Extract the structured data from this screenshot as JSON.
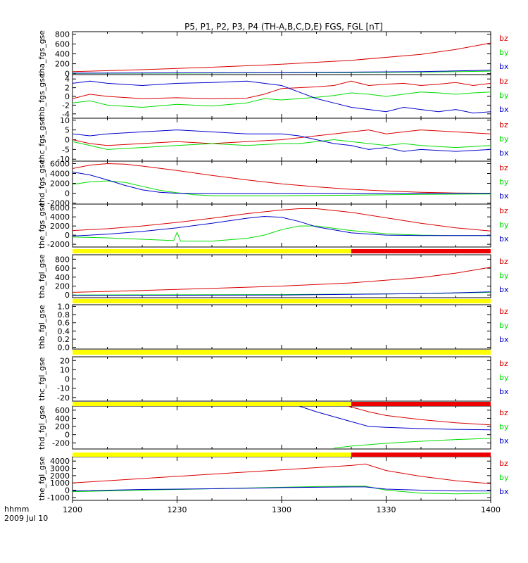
{
  "title": "P5, P1, P2, P3, P4 (TH-A,B,C,D,E) FGS, FGL [nT]",
  "xaxis": {
    "label_line1": "hhmm",
    "label_line2": "2009 Jul 10",
    "range_minutes": [
      0,
      120
    ],
    "ticks": [
      {
        "minute": 0,
        "label": "1200"
      },
      {
        "minute": 30,
        "label": "1230"
      },
      {
        "minute": 60,
        "label": "1300"
      },
      {
        "minute": 90,
        "label": "1330"
      },
      {
        "minute": 120,
        "label": "1400"
      }
    ]
  },
  "colors": {
    "bz": "#d90000",
    "by": "#00dd00",
    "bx": "#0000cc",
    "flag_yellow": "#ffff00",
    "flag_red": "#ee0000",
    "axis": "#000000"
  },
  "legend_labels": {
    "bz": "bz",
    "by": "by",
    "bx": "bx"
  },
  "chart_data": [
    {
      "type": "line",
      "ylabel": "tha_fgs_gse",
      "ylim": [
        -20,
        850
      ],
      "yticks": [
        0,
        200,
        400,
        600,
        800
      ],
      "series": [
        {
          "name": "bz",
          "x": [
            0,
            20,
            40,
            60,
            80,
            100,
            110,
            120
          ],
          "y": [
            40,
            80,
            130,
            190,
            270,
            390,
            490,
            620
          ]
        },
        {
          "name": "by",
          "x": [
            0,
            60,
            100,
            120
          ],
          "y": [
            5,
            15,
            30,
            50
          ]
        },
        {
          "name": "bx",
          "x": [
            0,
            60,
            100,
            120
          ],
          "y": [
            10,
            20,
            40,
            70
          ]
        }
      ]
    },
    {
      "type": "line",
      "ylabel": "thb_fgs_gse",
      "ylim": [
        -5,
        5
      ],
      "yticks": [
        -4,
        -2,
        0,
        2,
        4
      ],
      "series": [
        {
          "name": "bz",
          "x": [
            0,
            5,
            10,
            20,
            30,
            40,
            50,
            55,
            60,
            65,
            70,
            75,
            80,
            85,
            90,
            95,
            100,
            105,
            110,
            115,
            120
          ],
          "y": [
            -0.5,
            0.5,
            0,
            -0.5,
            -0.3,
            -0.5,
            -0.4,
            0.5,
            1.8,
            2.0,
            2.2,
            2.5,
            3.5,
            2.5,
            2.8,
            3.0,
            2.5,
            2.8,
            3.2,
            2.5,
            3.0
          ]
        },
        {
          "name": "by",
          "x": [
            0,
            5,
            10,
            20,
            30,
            40,
            50,
            55,
            60,
            65,
            70,
            75,
            80,
            85,
            90,
            95,
            100,
            105,
            110,
            115,
            120
          ],
          "y": [
            -1.5,
            -1.0,
            -2.0,
            -2.5,
            -1.8,
            -2.2,
            -1.5,
            -0.5,
            -0.8,
            -0.5,
            -0.2,
            0.2,
            0.8,
            0.5,
            0.0,
            0.5,
            1.0,
            0.8,
            0.5,
            0.8,
            1.0
          ]
        },
        {
          "name": "bx",
          "x": [
            0,
            5,
            10,
            20,
            30,
            40,
            50,
            55,
            60,
            65,
            70,
            75,
            80,
            85,
            90,
            95,
            100,
            105,
            110,
            115,
            120
          ],
          "y": [
            3.0,
            3.5,
            3.0,
            2.5,
            3.0,
            3.2,
            3.5,
            3.0,
            2.5,
            1.0,
            -0.5,
            -1.5,
            -2.5,
            -3.0,
            -3.5,
            -2.5,
            -3.0,
            -3.5,
            -3.0,
            -3.8,
            -3.5
          ]
        }
      ]
    },
    {
      "type": "line",
      "ylabel": "thc_fgs_gse",
      "ylim": [
        -11,
        11
      ],
      "yticks": [
        -10,
        -5,
        0,
        5,
        10
      ],
      "series": [
        {
          "name": "bz",
          "x": [
            0,
            5,
            10,
            20,
            30,
            40,
            50,
            60,
            65,
            70,
            75,
            80,
            85,
            90,
            95,
            100,
            110,
            120
          ],
          "y": [
            0,
            -2,
            -3,
            -2,
            -1,
            -2,
            -1,
            0,
            1,
            2,
            3,
            4,
            5,
            3,
            4,
            5,
            4,
            3
          ]
        },
        {
          "name": "by",
          "x": [
            0,
            5,
            10,
            20,
            30,
            40,
            50,
            60,
            65,
            70,
            75,
            80,
            85,
            90,
            95,
            100,
            110,
            120
          ],
          "y": [
            -1,
            -3,
            -5,
            -4,
            -3,
            -2,
            -3,
            -2,
            -2,
            -1,
            0,
            -1,
            -2,
            -3,
            -2,
            -3,
            -4,
            -3
          ]
        },
        {
          "name": "bx",
          "x": [
            0,
            5,
            10,
            20,
            30,
            40,
            50,
            60,
            65,
            70,
            75,
            80,
            85,
            90,
            95,
            100,
            110,
            120
          ],
          "y": [
            3,
            2,
            3,
            4,
            5,
            4,
            3,
            3,
            2,
            0,
            -2,
            -3,
            -5,
            -4,
            -6,
            -5,
            -6,
            -5
          ]
        }
      ]
    },
    {
      "type": "line",
      "ylabel": "thd_fgs_gse",
      "ylim": [
        -2200,
        6500
      ],
      "yticks": [
        -2000,
        0,
        2000,
        4000,
        6000
      ],
      "series": [
        {
          "name": "bz",
          "x": [
            0,
            5,
            10,
            15,
            20,
            30,
            40,
            50,
            60,
            70,
            80,
            90,
            100,
            110,
            120
          ],
          "y": [
            5000,
            5700,
            6000,
            5900,
            5500,
            4600,
            3600,
            2700,
            1900,
            1300,
            800,
            450,
            200,
            50,
            0
          ]
        },
        {
          "name": "by",
          "x": [
            0,
            5,
            10,
            15,
            20,
            25,
            30,
            35,
            40,
            60,
            80,
            100,
            120
          ],
          "y": [
            1800,
            2300,
            2500,
            2200,
            1400,
            600,
            100,
            -300,
            -500,
            -500,
            -400,
            -250,
            -150
          ]
        },
        {
          "name": "bx",
          "x": [
            0,
            5,
            10,
            15,
            20,
            25,
            30,
            40,
            60,
            80,
            100,
            120
          ],
          "y": [
            4300,
            3700,
            2700,
            1600,
            700,
            200,
            0,
            -50,
            -30,
            0,
            0,
            0
          ]
        }
      ]
    },
    {
      "type": "line",
      "ylabel": "the_fgs_gse",
      "ylim": [
        -2600,
        6800
      ],
      "yticks": [
        -2000,
        0,
        2000,
        4000,
        6000
      ],
      "series": [
        {
          "name": "bz",
          "x": [
            0,
            10,
            20,
            30,
            40,
            50,
            60,
            65,
            70,
            80,
            90,
            100,
            110,
            120
          ],
          "y": [
            1000,
            1400,
            2000,
            2800,
            3700,
            4700,
            5500,
            5800,
            5800,
            5000,
            3800,
            2600,
            1600,
            900
          ]
        },
        {
          "name": "by",
          "x": [
            0,
            10,
            20,
            29,
            30,
            31,
            40,
            50,
            55,
            60,
            65,
            70,
            80,
            90,
            100,
            110,
            120
          ],
          "y": [
            -400,
            -600,
            -900,
            -1200,
            600,
            -1300,
            -1300,
            -700,
            0,
            1200,
            2000,
            2000,
            1000,
            300,
            0,
            -100,
            -100
          ]
        },
        {
          "name": "bx",
          "x": [
            0,
            10,
            20,
            30,
            40,
            50,
            55,
            60,
            65,
            70,
            80,
            90,
            100,
            110,
            120
          ],
          "y": [
            -200,
            200,
            800,
            1600,
            2600,
            3700,
            4100,
            3900,
            3000,
            1800,
            500,
            0,
            -100,
            -100,
            -100
          ]
        }
      ]
    },
    {
      "type": "line",
      "ylabel": "tha_fgl_gse",
      "ylim": [
        -60,
        900
      ],
      "yticks": [
        0,
        200,
        400,
        600,
        800
      ],
      "series": [
        {
          "name": "bz",
          "x": [
            0,
            20,
            40,
            60,
            80,
            100,
            110,
            120
          ],
          "y": [
            60,
            100,
            150,
            200,
            270,
            390,
            490,
            620
          ]
        },
        {
          "name": "by",
          "x": [
            0,
            60,
            100,
            120
          ],
          "y": [
            0,
            10,
            30,
            60
          ]
        },
        {
          "name": "bx",
          "x": [
            0,
            60,
            100,
            120
          ],
          "y": [
            -10,
            0,
            30,
            70
          ]
        }
      ]
    },
    {
      "type": "line",
      "ylabel": "thb_fgl_gse",
      "ylim": [
        -0.04,
        1.04
      ],
      "yticks": [
        0.0,
        0.2,
        0.4,
        0.6,
        0.8,
        1.0
      ],
      "series": []
    },
    {
      "type": "line",
      "ylabel": "thc_fgl_gse",
      "ylim": [
        -24,
        24
      ],
      "yticks": [
        -20,
        -10,
        0,
        10,
        20
      ],
      "series": []
    },
    {
      "type": "line",
      "ylabel": "thd_fgl_gse",
      "ylim": [
        -350,
        700
      ],
      "yticks": [
        -200,
        0,
        200,
        400,
        600
      ],
      "series": [
        {
          "name": "bz",
          "x": [
            79,
            85,
            90,
            100,
            110,
            120
          ],
          "y": [
            700,
            560,
            470,
            370,
            290,
            240
          ]
        },
        {
          "name": "by",
          "x": [
            75,
            80,
            90,
            100,
            110,
            120
          ],
          "y": [
            -330,
            -280,
            -210,
            -160,
            -120,
            -90
          ]
        },
        {
          "name": "bx",
          "x": [
            65,
            70,
            80,
            85,
            90,
            100,
            110,
            120
          ],
          "y": [
            700,
            560,
            320,
            200,
            180,
            150,
            130,
            120
          ]
        }
      ]
    },
    {
      "type": "line",
      "ylabel": "the_fgl_gse",
      "ylim": [
        -1400,
        4600
      ],
      "yticks": [
        -1000,
        0,
        1000,
        2000,
        3000,
        4000
      ],
      "series": [
        {
          "name": "bz",
          "x": [
            0,
            20,
            40,
            60,
            70,
            80,
            84,
            90,
            100,
            110,
            120
          ],
          "y": [
            1000,
            1600,
            2200,
            2800,
            3100,
            3400,
            3600,
            2700,
            1900,
            1300,
            900
          ]
        },
        {
          "name": "by",
          "x": [
            0,
            20,
            40,
            60,
            70,
            80,
            84,
            90,
            100,
            110,
            120
          ],
          "y": [
            -200,
            0,
            200,
            400,
            500,
            550,
            550,
            0,
            -400,
            -500,
            -400
          ]
        },
        {
          "name": "bx",
          "x": [
            0,
            20,
            40,
            60,
            70,
            80,
            84,
            90,
            100,
            110,
            120
          ],
          "y": [
            -100,
            100,
            200,
            350,
            400,
            450,
            450,
            150,
            0,
            -100,
            -100
          ]
        }
      ]
    }
  ],
  "flag_bars": [
    {
      "after_panel": 4,
      "segments": [
        {
          "x": [
            0,
            80
          ],
          "color": "flag_yellow"
        },
        {
          "x": [
            80,
            120
          ],
          "color": "flag_red"
        }
      ]
    },
    {
      "after_panel": 5,
      "segments": [
        {
          "x": [
            0,
            120
          ],
          "color": "flag_yellow"
        }
      ]
    },
    {
      "after_panel": 6,
      "segments": [
        {
          "x": [
            0,
            120
          ],
          "color": "flag_yellow"
        }
      ]
    },
    {
      "after_panel": 7,
      "segments": [
        {
          "x": [
            0,
            80
          ],
          "color": "flag_yellow"
        },
        {
          "x": [
            80,
            120
          ],
          "color": "flag_red"
        }
      ]
    },
    {
      "after_panel": 8,
      "segments": [
        {
          "x": [
            0,
            80
          ],
          "color": "flag_yellow"
        },
        {
          "x": [
            80,
            120
          ],
          "color": "flag_red"
        }
      ]
    }
  ]
}
